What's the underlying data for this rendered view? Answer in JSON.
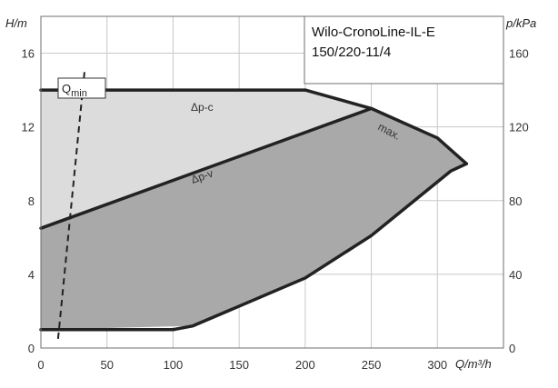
{
  "chart_data": {
    "type": "area",
    "title_lines": [
      "Wilo-CronoLine-IL-E",
      "150/220-11/4"
    ],
    "ylabel_left": "H/m",
    "ylabel_right": "p/kPa",
    "xlabel": "Q/m³/h",
    "xlim": [
      0,
      350
    ],
    "ylim": [
      0,
      18
    ],
    "ylim_right": [
      0,
      180
    ],
    "x_ticks": [
      0,
      50,
      100,
      150,
      200,
      250,
      300
    ],
    "y_ticks": [
      0,
      4,
      8,
      12,
      16
    ],
    "y_ticks_right": [
      0,
      40,
      80,
      120,
      160
    ],
    "grid": true,
    "regions": {
      "operating_area_dark": [
        [
          0,
          1
        ],
        [
          115,
          1.2
        ],
        [
          200,
          3.8
        ],
        [
          250,
          6.1
        ],
        [
          310,
          9.6
        ],
        [
          322,
          10
        ],
        [
          300,
          11.4
        ],
        [
          250,
          13
        ],
        [
          0,
          6.5
        ]
      ],
      "operating_area_light": [
        [
          0,
          6.5
        ],
        [
          250,
          13
        ],
        [
          212,
          13.8
        ],
        [
          200,
          14
        ],
        [
          0,
          14
        ]
      ]
    },
    "series": [
      {
        "name": "Δp-c",
        "points": [
          [
            0,
            14
          ],
          [
            200,
            14
          ]
        ]
      },
      {
        "name": "Δp-v",
        "points": [
          [
            0,
            6.5
          ],
          [
            250,
            13
          ]
        ]
      },
      {
        "name": "max.",
        "points": [
          [
            200,
            14
          ],
          [
            250,
            13
          ],
          [
            300,
            11.4
          ],
          [
            322,
            10
          ]
        ]
      },
      {
        "name": "",
        "points": [
          [
            0,
            1
          ],
          [
            100,
            1
          ],
          [
            115,
            1.2
          ],
          [
            200,
            3.8
          ],
          [
            250,
            6.1
          ],
          [
            310,
            9.6
          ],
          [
            322,
            10
          ]
        ]
      }
    ],
    "qmin": {
      "label": "Q",
      "subscript": "min",
      "points": [
        [
          13,
          0.5
        ],
        [
          33,
          15
        ]
      ]
    },
    "colors": {
      "dark_fill": "#a9a9a9",
      "light_fill": "#dcdcdc",
      "curve": "#222222",
      "grid": "#c8c8c8"
    }
  }
}
